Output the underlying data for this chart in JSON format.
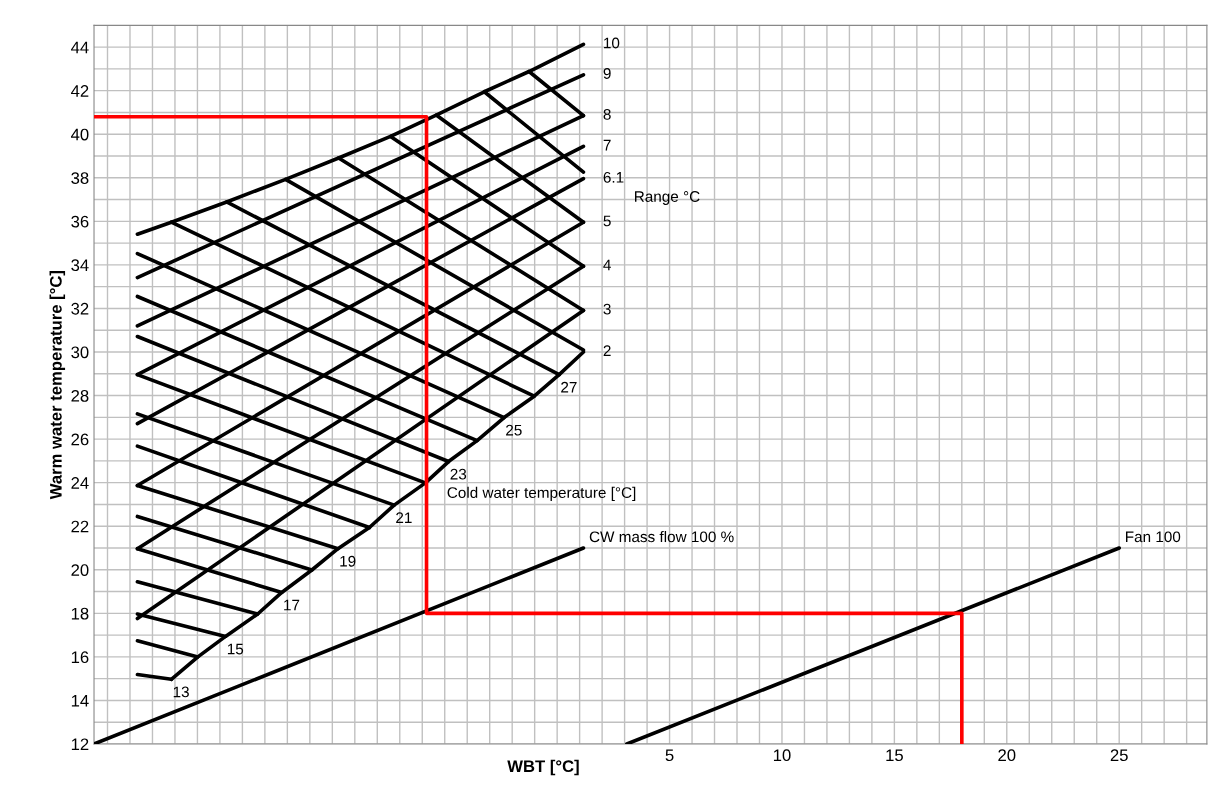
{
  "chart_data": {
    "type": "line",
    "xlabel": "WBT [°C]",
    "ylabel": "Warm water temperature [°C]",
    "xlim": [
      -20.6,
      28.9
    ],
    "xticks": [
      5,
      10,
      15,
      20,
      25
    ],
    "ylim": [
      12,
      45
    ],
    "yticks": [
      12,
      14,
      16,
      18,
      20,
      22,
      24,
      26,
      28,
      30,
      32,
      34,
      36,
      38,
      40,
      42,
      44
    ],
    "grid": true,
    "legend": false,
    "marker": "none",
    "line_style": "solid",
    "series": [
      {
        "name": "10",
        "color": "#000000",
        "x": [
          -18.67,
          -17.16,
          -14.7,
          -12.08,
          -9.72,
          -7.41,
          -5.38,
          -3.24,
          -1.25,
          1.17
        ],
        "values": [
          35.41,
          35.96,
          36.89,
          37.93,
          38.91,
          39.9,
          40.88,
          41.95,
          42.88,
          44.13
        ]
      },
      {
        "name": "9",
        "color": "#000000",
        "x": [
          -18.67,
          1.17
        ],
        "values": [
          33.42,
          42.73
        ]
      },
      {
        "name": "8",
        "color": "#000000",
        "x": [
          -18.67,
          1.17
        ],
        "values": [
          31.2,
          40.85
        ]
      },
      {
        "name": "7",
        "color": "#000000",
        "x": [
          -18.67,
          1.17
        ],
        "values": [
          28.96,
          39.44
        ]
      },
      {
        "name": "6.1",
        "color": "#000000",
        "x": [
          -18.67,
          1.17
        ],
        "values": [
          26.71,
          37.96
        ]
      },
      {
        "name": "5",
        "color": "#000000",
        "x": [
          -18.67,
          1.17
        ],
        "values": [
          23.87,
          35.96
        ]
      },
      {
        "name": "4",
        "color": "#000000",
        "x": [
          -18.67,
          1.17
        ],
        "values": [
          20.97,
          33.94
        ]
      },
      {
        "name": "3",
        "color": "#000000",
        "x": [
          -18.67,
          1.17
        ],
        "values": [
          17.76,
          31.91
        ]
      },
      {
        "name": "2",
        "color": "#000000",
        "x": [
          -17.16,
          -15.98,
          -14.75,
          -13.32,
          -12.25,
          -10.91,
          -9.75,
          -8.35,
          -7.25,
          -5.86,
          -4.83,
          -3.56,
          -2.36,
          -1.02,
          0.09,
          1.17
        ],
        "values": [
          14.97,
          16.0,
          16.94,
          17.97,
          18.96,
          19.99,
          20.97,
          21.94,
          22.97,
          23.99,
          24.97,
          25.93,
          26.99,
          27.97,
          28.96,
          30.0
        ]
      },
      {
        "name": "13",
        "color": "#000000",
        "x": [
          -18.67,
          -17.16
        ],
        "values": [
          15.19,
          14.97
        ]
      },
      {
        "color": "#000000",
        "x": [
          -18.67,
          -15.98
        ],
        "values": [
          16.74,
          16.0
        ]
      },
      {
        "name": "15",
        "color": "#000000",
        "x": [
          -18.67,
          -14.75
        ],
        "values": [
          17.97,
          16.94
        ]
      },
      {
        "color": "#000000",
        "x": [
          -18.67,
          -13.32
        ],
        "values": [
          19.45,
          17.97
        ]
      },
      {
        "name": "17",
        "color": "#000000",
        "x": [
          -18.67,
          -12.25
        ],
        "values": [
          20.97,
          18.96
        ]
      },
      {
        "color": "#000000",
        "x": [
          -18.67,
          -10.91
        ],
        "values": [
          22.45,
          19.99
        ]
      },
      {
        "name": "19",
        "color": "#000000",
        "x": [
          -18.67,
          -9.75
        ],
        "values": [
          23.87,
          20.97
        ]
      },
      {
        "color": "#000000",
        "x": [
          -18.67,
          -8.35
        ],
        "values": [
          25.68,
          21.94
        ]
      },
      {
        "name": "21",
        "color": "#000000",
        "x": [
          -18.67,
          -7.25
        ],
        "values": [
          27.16,
          22.97
        ]
      },
      {
        "color": "#000000",
        "x": [
          -18.67,
          -5.86
        ],
        "values": [
          28.96,
          23.99
        ]
      },
      {
        "name": "23",
        "color": "#000000",
        "x": [
          -18.67,
          -4.83
        ],
        "values": [
          30.71,
          24.97
        ]
      },
      {
        "color": "#000000",
        "x": [
          -18.67,
          -3.56
        ],
        "values": [
          32.55,
          25.93
        ]
      },
      {
        "name": "25",
        "color": "#000000",
        "x": [
          -18.67,
          -2.36
        ],
        "values": [
          34.52,
          26.99
        ]
      },
      {
        "color": "#000000",
        "x": [
          -17.16,
          -1.02
        ],
        "values": [
          35.96,
          27.97
        ]
      },
      {
        "name": "27",
        "color": "#000000",
        "x": [
          -14.7,
          0.09
        ],
        "values": [
          36.89,
          28.96
        ]
      },
      {
        "color": "#000000",
        "x": [
          -12.08,
          1.17
        ],
        "values": [
          37.93,
          30.09
        ]
      },
      {
        "color": "#000000",
        "x": [
          -9.72,
          1.17
        ],
        "values": [
          38.91,
          31.91
        ]
      },
      {
        "color": "#000000",
        "x": [
          -7.41,
          1.17
        ],
        "values": [
          39.9,
          33.94
        ]
      },
      {
        "color": "#000000",
        "x": [
          -5.38,
          1.17
        ],
        "values": [
          40.88,
          35.96
        ]
      },
      {
        "color": "#000000",
        "x": [
          -3.24,
          1.17
        ],
        "values": [
          41.95,
          38.26
        ]
      },
      {
        "color": "#000000",
        "x": [
          -1.25,
          1.17
        ],
        "values": [
          42.88,
          40.85
        ]
      },
      {
        "name": "CW mass flow 100 %",
        "color": "#000000",
        "x": [
          -20.6,
          1.17
        ],
        "values": [
          12,
          21
        ]
      },
      {
        "name": "Fan 100",
        "color": "#000000",
        "x": [
          3.1,
          25
        ],
        "values": [
          12,
          21
        ]
      },
      {
        "color": "#ff0000",
        "x": [
          -20.6,
          -5.81,
          -5.81,
          18,
          18
        ],
        "values": [
          40.8,
          40.8,
          18,
          18,
          12
        ]
      }
    ],
    "annotations": [
      "Range °C",
      "Cold water temperature [°C]"
    ]
  }
}
